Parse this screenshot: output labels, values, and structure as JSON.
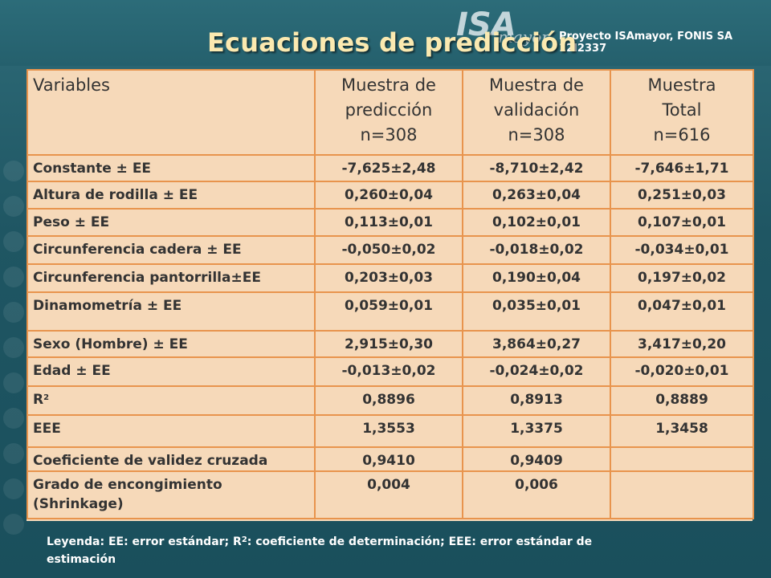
{
  "slide": {
    "title": "Ecuaciones de predicción",
    "logo_main": "ISA",
    "logo_sub": "mayor",
    "project": "Proyecto ISAmayor, FONIS SA 12I2337",
    "background_color": "#1f5663",
    "title_color": "#fbe9b0"
  },
  "table": {
    "header": {
      "col1": "Variables",
      "col2": [
        "Muestra de",
        "predicción",
        "n=308"
      ],
      "col3": [
        "Muestra de",
        "validación",
        "n=308"
      ],
      "col4": [
        "Muestra",
        "Total",
        "n=616"
      ]
    },
    "rows": [
      {
        "label": "Constante ± EE",
        "pred": "-7,625±2,48",
        "val": "-8,710±2,42",
        "total": "-7,646±1,71"
      },
      {
        "label": "Altura de rodilla ± EE",
        "pred": "0,260±0,04",
        "val": "0,263±0,04",
        "total": "0,251±0,03"
      },
      {
        "label": "Peso ± EE",
        "pred": "0,113±0,01",
        "val": "0,102±0,01",
        "total": "0,107±0,01"
      },
      {
        "label": "Circunferencia cadera ± EE",
        "pred": "-0,050±0,02",
        "val": "-0,018±0,02",
        "total": "-0,034±0,01"
      },
      {
        "label": "Circunferencia pantorrilla±EE",
        "pred": "0,203±0,03",
        "val": "0,190±0,04",
        "total": "0,197±0,02"
      },
      {
        "label": "Dinamometría ± EE",
        "pred": "0,059±0,01",
        "val": "0,035±0,01",
        "total": "0,047±0,01"
      },
      {
        "label": "Sexo (Hombre) ± EE",
        "pred": "2,915±0,30",
        "val": "3,864±0,27",
        "total": "3,417±0,20"
      },
      {
        "label": "Edad ± EE",
        "pred": "-0,013±0,02",
        "val": "-0,024±0,02",
        "total": "-0,020±0,01"
      },
      {
        "label": "R",
        "label_sup": "2",
        "pred": "0,8896",
        "val": "0,8913",
        "total": "0,8889"
      },
      {
        "label": "EEE",
        "pred": "1,3553",
        "val": "1,3375",
        "total": "1,3458"
      },
      {
        "label": "Coeficiente de validez cruzada",
        "pred": "0,9410",
        "val": "0,9409",
        "total": ""
      },
      {
        "label": "Grado de encongimiento (Shrinkage)",
        "pred": "0,004",
        "val": "0,006",
        "total": ""
      }
    ],
    "cell_color": "#f6d9b9",
    "border_color": "#e8944d"
  },
  "legend": {
    "part1": "Leyenda: EE: error estándar; R",
    "sup": "2",
    "part2": ": coeficiente de determinación; EEE: error estándar de estimación"
  }
}
